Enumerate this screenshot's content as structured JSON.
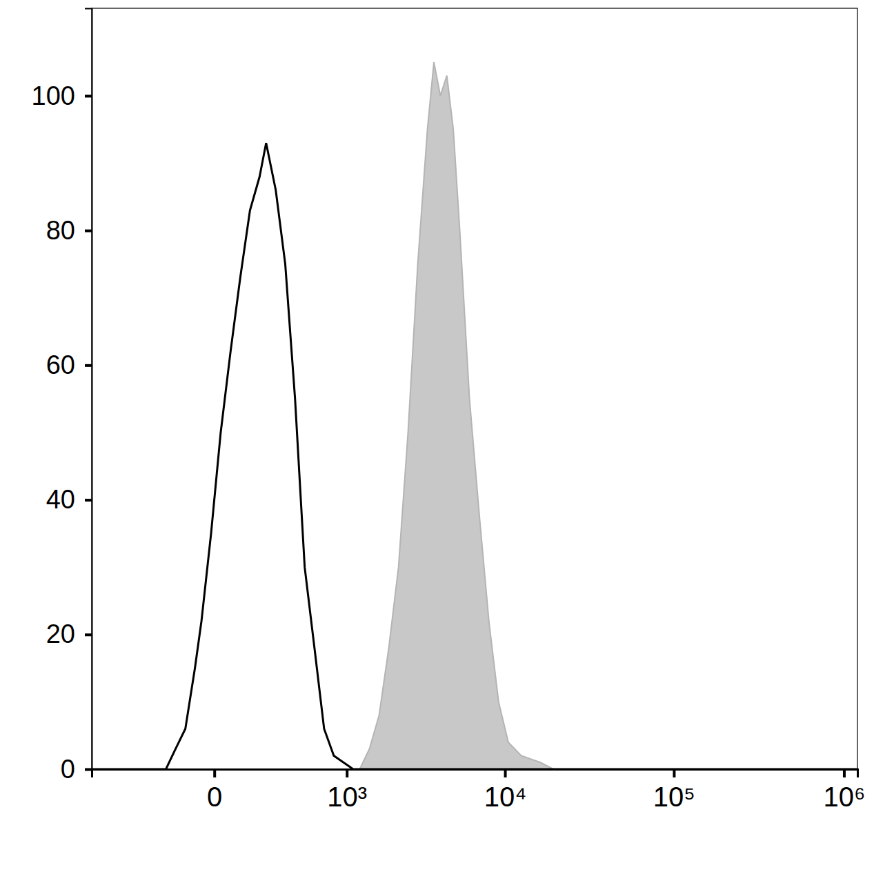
{
  "chart_data": {
    "type": "line",
    "log": "x",
    "xlim": [
      -850,
      1200000
    ],
    "ylim": [
      0,
      113
    ],
    "xticks": [
      0,
      {
        "value": 1000,
        "label": "10³"
      },
      {
        "value": 10000,
        "label": "10⁴"
      },
      {
        "value": 100000,
        "label": "10⁵"
      },
      {
        "value": 1000000,
        "label": "10⁶"
      }
    ],
    "yticks": [
      0,
      20,
      40,
      60,
      80,
      100
    ],
    "series": [
      {
        "type": "line",
        "color": "#000000",
        "x": [
          -850,
          -185,
          -138,
          -96,
          -60,
          -38,
          -9,
          18,
          49,
          84,
          124,
          169,
          203,
          259,
          322,
          396,
          479,
          575,
          683,
          807,
          948,
          1109,
          1229,
          1200000
        ],
        "values": [
          0,
          0,
          3,
          6,
          15,
          22,
          35,
          50,
          62,
          73,
          83,
          88,
          93,
          86,
          75,
          55,
          30,
          18,
          6,
          2,
          1,
          0,
          0,
          0
        ]
      },
      {
        "type": "area",
        "color": "#c8c8c8",
        "x": [
          -850,
          1229,
          1429,
          1658,
          1918,
          2216,
          2548,
          2934,
          3372,
          3700,
          4056,
          4446,
          4870,
          5334,
          6110,
          6994,
          8004,
          9154,
          10466,
          12506,
          16282,
          19440,
          1200000
        ],
        "values": [
          0,
          0,
          3,
          8,
          18,
          30,
          50,
          75,
          95,
          105,
          100,
          103,
          95,
          80,
          55,
          38,
          22,
          10,
          4,
          2,
          1,
          0,
          0
        ]
      }
    ]
  }
}
